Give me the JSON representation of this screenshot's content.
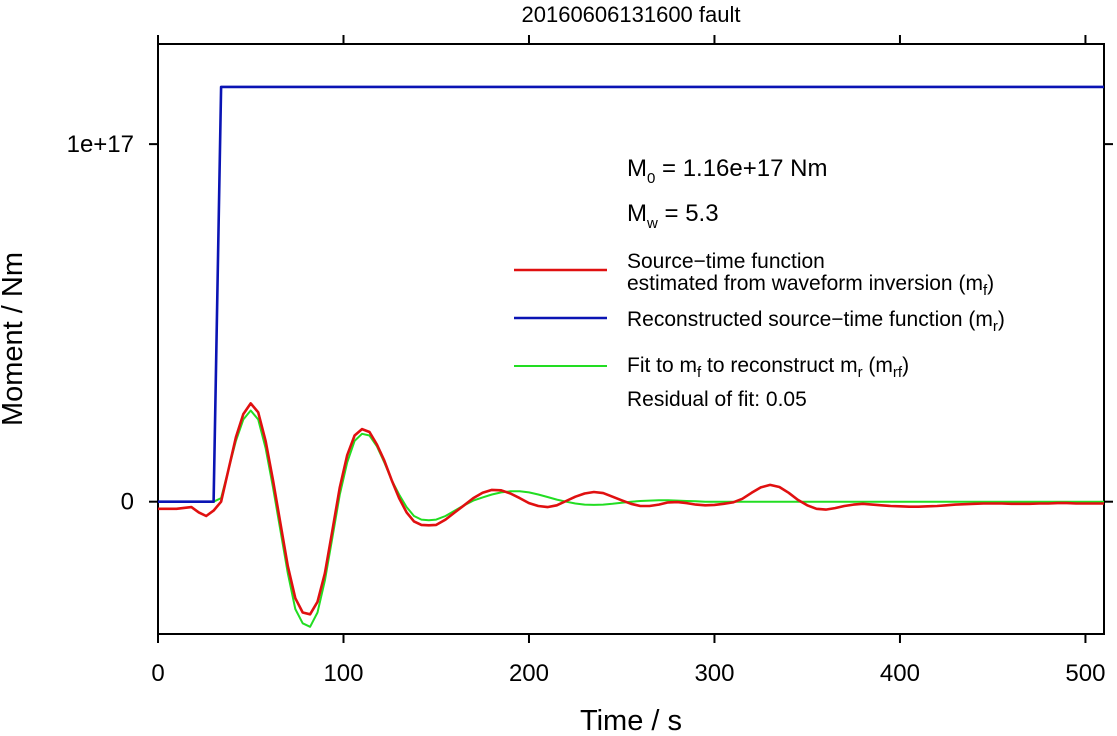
{
  "chart_data": {
    "type": "line",
    "title": "20160606131600 fault",
    "xlabel": "Time / s",
    "ylabel": "Moment / Nm",
    "xlim": [
      0,
      510
    ],
    "ylim": [
      -3.7e+16,
      1.28e+17
    ],
    "x_ticks": [
      {
        "value": 0,
        "label": "0"
      },
      {
        "value": 100,
        "label": "100"
      },
      {
        "value": 200,
        "label": "200"
      },
      {
        "value": 300,
        "label": "300"
      },
      {
        "value": 400,
        "label": "400"
      },
      {
        "value": 500,
        "label": "500"
      }
    ],
    "y_ticks": [
      {
        "value": 0,
        "label": "0"
      },
      {
        "value": 1e+17,
        "label": "1e+17"
      }
    ],
    "grid": false,
    "legend_position": "right",
    "annotations": {
      "m0_main": "M",
      "m0_sub": "0",
      "m0_rest": " = 1.16e+17 Nm",
      "mw_main": "M",
      "mw_sub": "w",
      "mw_rest": " = 5.3",
      "residual": "Residual of fit: 0.05"
    },
    "legend": [
      {
        "lines": [
          "Source−time function",
          "estimated from waveform inversion (m"
        ],
        "sub": "f",
        "tail": ")",
        "color": "#e01010"
      },
      {
        "lines": [
          "Reconstructed source−time function (m"
        ],
        "sub": "r",
        "tail": ")",
        "color": "#0a14b4"
      },
      {
        "lines": [
          "Fit to m"
        ],
        "sub": "f",
        "tail": " to reconstruct m",
        "sub2": "r",
        "tail2": " (m",
        "sub3": "rf",
        "tail3": ")",
        "color": "#22dd22"
      }
    ],
    "series": [
      {
        "name": "Source−time function estimated from waveform inversion (mf)",
        "color": "#e01010",
        "x": [
          0,
          10,
          18,
          22,
          26,
          30,
          34,
          38,
          42,
          46,
          50,
          54,
          58,
          62,
          66,
          70,
          74,
          78,
          82,
          86,
          90,
          94,
          98,
          102,
          106,
          110,
          114,
          118,
          122,
          126,
          130,
          134,
          138,
          142,
          146,
          150,
          155,
          160,
          165,
          170,
          175,
          180,
          185,
          190,
          195,
          200,
          205,
          210,
          215,
          220,
          225,
          230,
          235,
          240,
          245,
          250,
          255,
          260,
          265,
          270,
          275,
          280,
          285,
          290,
          295,
          300,
          305,
          310,
          315,
          320,
          325,
          330,
          335,
          340,
          345,
          350,
          355,
          360,
          365,
          370,
          375,
          380,
          385,
          390,
          395,
          400,
          405,
          410,
          415,
          420,
          425,
          430,
          435,
          440,
          445,
          450,
          455,
          460,
          465,
          470,
          475,
          480,
          485,
          490,
          495,
          500,
          505,
          510
        ],
        "y": [
          -2000000000000000.0,
          -2000000000000000.0,
          -1500000000000000.0,
          -3000000000000000.0,
          -4000000000000000.0,
          -2500000000000000.0,
          0,
          9000000000000000.0,
          1.8e+16,
          2.45e+16,
          2.75e+16,
          2.5e+16,
          1.7e+16,
          6000000000000000.0,
          -6000000000000000.0,
          -1.8e+16,
          -2.7e+16,
          -3.1e+16,
          -3.15e+16,
          -2.8e+16,
          -2e+16,
          -8000000000000000.0,
          4000000000000000.0,
          1.3e+16,
          1.85e+16,
          2.03e+16,
          1.95e+16,
          1.6e+16,
          1.15e+16,
          6000000000000000.0,
          1000000000000000.0,
          -3000000000000000.0,
          -5500000000000000.0,
          -6500000000000000.0,
          -6600000000000000.0,
          -6500000000000000.0,
          -5000000000000000.0,
          -3000000000000000.0,
          -1000000000000000.0,
          1000000000000000.0,
          2500000000000000.0,
          3300000000000000.0,
          3200000000000000.0,
          2300000000000000.0,
          1000000000000000.0,
          -400000000000000.0,
          -1200000000000000.0,
          -1500000000000000.0,
          -1000000000000000.0,
          200000000000000.0,
          1400000000000000.0,
          2300000000000000.0,
          2700000000000000.0,
          2400000000000000.0,
          1400000000000000.0,
          400000000000000.0,
          -600000000000000.0,
          -1200000000000000.0,
          -1200000000000000.0,
          -800000000000000.0,
          -200000000000000.0,
          -100000000000000.0,
          -400000000000000.0,
          -800000000000000.0,
          -1000000000000000.0,
          -900000000000000.0,
          -600000000000000.0,
          -200000000000000.0,
          800000000000000.0,
          2500000000000000.0,
          4000000000000000.0,
          4700000000000000.0,
          4100000000000000.0,
          2500000000000000.0,
          500000000000000.0,
          -1000000000000000.0,
          -2000000000000000.0,
          -2200000000000000.0,
          -1800000000000000.0,
          -1200000000000000.0,
          -800000000000000.0,
          -600000000000000.0,
          -800000000000000.0,
          -1000000000000000.0,
          -1200000000000000.0,
          -1300000000000000.0,
          -1400000000000000.0,
          -1400000000000000.0,
          -1300000000000000.0,
          -1200000000000000.0,
          -1000000000000000.0,
          -800000000000000.0,
          -700000000000000.0,
          -600000000000000.0,
          -500000000000000.0,
          -500000000000000.0,
          -500000000000000.0,
          -600000000000000.0,
          -600000000000000.0,
          -600000000000000.0,
          -500000000000000.0,
          -500000000000000.0,
          -400000000000000.0,
          -400000000000000.0,
          -500000000000000.0,
          -500000000000000.0,
          -500000000000000.0,
          -500000000000000.0
        ]
      },
      {
        "name": "Reconstructed source−time function (mr)",
        "color": "#0a14b4",
        "x": [
          0,
          30,
          34,
          510
        ],
        "y": [
          0,
          0,
          1.16e+17,
          1.16e+17
        ]
      },
      {
        "name": "Fit to mf to reconstruct mr (mrf)",
        "color": "#22dd22",
        "x": [
          0,
          30,
          34,
          38,
          42,
          46,
          50,
          54,
          58,
          62,
          66,
          70,
          74,
          78,
          82,
          86,
          90,
          94,
          98,
          102,
          106,
          110,
          114,
          118,
          122,
          126,
          130,
          134,
          138,
          142,
          146,
          150,
          155,
          160,
          165,
          170,
          175,
          180,
          185,
          190,
          195,
          200,
          205,
          210,
          215,
          220,
          225,
          230,
          235,
          240,
          245,
          250,
          255,
          260,
          265,
          270,
          275,
          280,
          285,
          290,
          295,
          300,
          305,
          310,
          315,
          320,
          325,
          330,
          340,
          350,
          360,
          380,
          400,
          420,
          440,
          460,
          480,
          500,
          510
        ],
        "y": [
          0,
          0,
          1000000000000000.0,
          9000000000000000.0,
          1.7e+16,
          2.3e+16,
          2.55e+16,
          2.3e+16,
          1.5e+16,
          4000000000000000.0,
          -8000000000000000.0,
          -2e+16,
          -3e+16,
          -3.4e+16,
          -3.5e+16,
          -3.1e+16,
          -2.2e+16,
          -1e+16,
          2000000000000000.0,
          1.1e+16,
          1.7e+16,
          1.9e+16,
          1.85e+16,
          1.55e+16,
          1.1e+16,
          6000000000000000.0,
          2000000000000000.0,
          -1500000000000000.0,
          -4000000000000000.0,
          -5000000000000000.0,
          -5200000000000000.0,
          -5000000000000000.0,
          -4000000000000000.0,
          -2500000000000000.0,
          -1000000000000000.0,
          300000000000000.0,
          1200000000000000.0,
          2000000000000000.0,
          2600000000000000.0,
          2900000000000000.0,
          2900000000000000.0,
          2600000000000000.0,
          2000000000000000.0,
          1300000000000000.0,
          600000000000000.0,
          0,
          -500000000000000.0,
          -800000000000000.0,
          -900000000000000.0,
          -800000000000000.0,
          -600000000000000.0,
          -300000000000000.0,
          0,
          200000000000000.0,
          300000000000000.0,
          400000000000000.0,
          400000000000000.0,
          300000000000000.0,
          200000000000000.0,
          100000000000000.0,
          0,
          0,
          0,
          0,
          0,
          0,
          0,
          0,
          0,
          0,
          0,
          0,
          0,
          0,
          0,
          0,
          0,
          0,
          0
        ]
      }
    ]
  }
}
